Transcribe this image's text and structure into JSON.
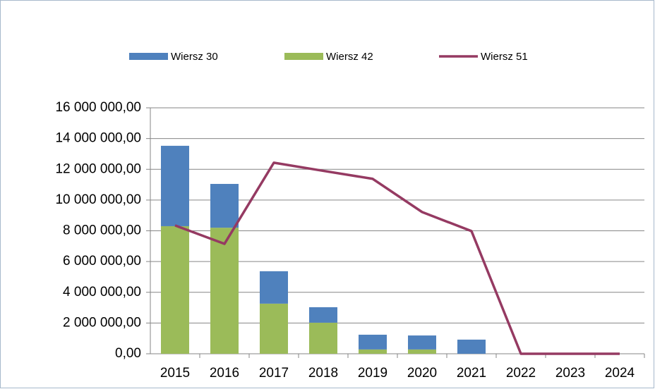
{
  "chart_data": {
    "type": "bar",
    "stacked": true,
    "categories": [
      "2015",
      "2016",
      "2017",
      "2018",
      "2019",
      "2020",
      "2021",
      "2022",
      "2023",
      "2024"
    ],
    "series": [
      {
        "name": "Wiersz 30",
        "type": "bar",
        "color": "#4f81bd",
        "values": [
          5230000,
          2850000,
          2110000,
          1010000,
          960000,
          910000,
          920000,
          0,
          0,
          0
        ]
      },
      {
        "name": "Wiersz 42",
        "type": "bar",
        "color": "#9bbb59",
        "values": [
          8300000,
          8200000,
          3260000,
          2020000,
          280000,
          280000,
          0,
          0,
          0,
          0
        ]
      },
      {
        "name": "Wiersz 51",
        "type": "line",
        "color": "#953a62",
        "values": [
          8350000,
          7150000,
          12430000,
          11900000,
          11380000,
          9220000,
          7980000,
          0,
          0,
          0
        ]
      }
    ],
    "ylim": [
      0,
      16000000
    ],
    "yticks": [
      {
        "value": 0,
        "label": "0,00"
      },
      {
        "value": 2000000,
        "label": "2 000 000,00"
      },
      {
        "value": 4000000,
        "label": "4 000 000,00"
      },
      {
        "value": 6000000,
        "label": "6 000 000,00"
      },
      {
        "value": 8000000,
        "label": "8 000 000,00"
      },
      {
        "value": 10000000,
        "label": "10 000 000,00"
      },
      {
        "value": 12000000,
        "label": "12 000 000,00"
      },
      {
        "value": 14000000,
        "label": "14 000 000,00"
      },
      {
        "value": 16000000,
        "label": "16 000 000,00"
      }
    ],
    "grid": true,
    "legend": "top"
  }
}
